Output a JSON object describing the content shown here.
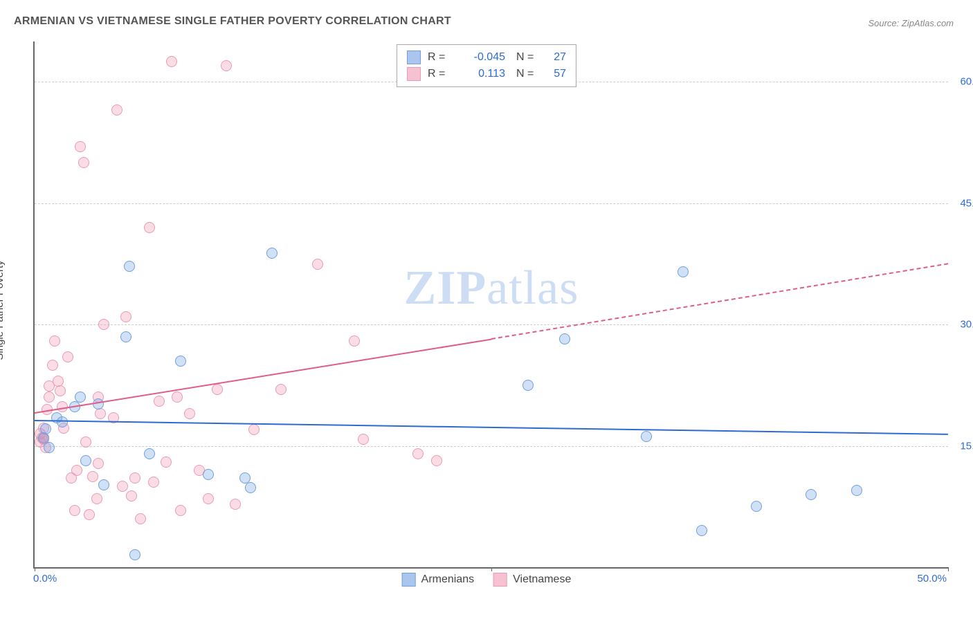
{
  "title": "ARMENIAN VS VIETNAMESE SINGLE FATHER POVERTY CORRELATION CHART",
  "source_label": "Source: ZipAtlas.com",
  "ylabel": "Single Father Poverty",
  "watermark_a": "ZIP",
  "watermark_b": "atlas",
  "chart": {
    "type": "scatter",
    "background_color": "#ffffff",
    "grid_color": "#cccccc",
    "axis_color": "#666666",
    "tick_color": "#2d6bd1",
    "xlim": [
      0,
      50
    ],
    "ylim": [
      0,
      65
    ],
    "yticks": [
      15,
      30,
      45,
      60
    ],
    "ytick_labels": [
      "15.0%",
      "30.0%",
      "45.0%",
      "60.0%"
    ],
    "xtick_marks": [
      0,
      25,
      50
    ],
    "xtick_min_label": "0.0%",
    "xtick_max_label": "50.0%",
    "marker_radius": 8,
    "marker_border_width": 1.5,
    "series": {
      "armenians": {
        "label": "Armenians",
        "fill": "rgba(120,165,225,0.35)",
        "stroke": "#6f9fe0",
        "swatch_fill": "#aac6ee",
        "swatch_border": "#6f9fe0",
        "trend_color": "#2d6bd1",
        "trend_width": 2,
        "r_label": "R =",
        "r_value": "-0.045",
        "n_label": "N =",
        "n_value": "27",
        "trend": {
          "x1": 0,
          "y1": 18.2,
          "x2": 50,
          "y2": 16.5
        },
        "points": [
          {
            "x": 0.5,
            "y": 16.0
          },
          {
            "x": 0.6,
            "y": 17.1
          },
          {
            "x": 0.8,
            "y": 14.8
          },
          {
            "x": 1.2,
            "y": 18.5
          },
          {
            "x": 1.5,
            "y": 18.0
          },
          {
            "x": 2.2,
            "y": 19.8
          },
          {
            "x": 2.5,
            "y": 21.0
          },
          {
            "x": 2.8,
            "y": 13.2
          },
          {
            "x": 3.5,
            "y": 20.2
          },
          {
            "x": 3.8,
            "y": 10.2
          },
          {
            "x": 5.0,
            "y": 28.5
          },
          {
            "x": 5.2,
            "y": 37.2
          },
          {
            "x": 5.5,
            "y": 1.5
          },
          {
            "x": 6.3,
            "y": 14.0
          },
          {
            "x": 8.0,
            "y": 25.5
          },
          {
            "x": 9.5,
            "y": 11.5
          },
          {
            "x": 11.5,
            "y": 11.0
          },
          {
            "x": 11.8,
            "y": 9.8
          },
          {
            "x": 13.0,
            "y": 38.8
          },
          {
            "x": 27.0,
            "y": 22.5
          },
          {
            "x": 29.0,
            "y": 28.2
          },
          {
            "x": 33.5,
            "y": 16.2
          },
          {
            "x": 35.5,
            "y": 36.5
          },
          {
            "x": 36.5,
            "y": 4.5
          },
          {
            "x": 39.5,
            "y": 7.5
          },
          {
            "x": 42.5,
            "y": 9.0
          },
          {
            "x": 45.0,
            "y": 9.5
          }
        ]
      },
      "vietnamese": {
        "label": "Vietnamese",
        "fill": "rgba(240,140,170,0.30)",
        "stroke": "#ea9ab5",
        "swatch_fill": "#f6c2d2",
        "swatch_border": "#ea9ab5",
        "trend_color": "#e05c8a",
        "trend_width": 2,
        "r_label": "R =",
        "r_value": "0.113",
        "n_label": "N =",
        "n_value": "57",
        "trend_solid": {
          "x1": 0,
          "y1": 19.2,
          "x2": 25,
          "y2": 28.3
        },
        "trend_dashed": {
          "x1": 25,
          "y1": 28.3,
          "x2": 50,
          "y2": 37.6
        },
        "points": [
          {
            "x": 0.3,
            "y": 15.5
          },
          {
            "x": 0.3,
            "y": 16.5
          },
          {
            "x": 0.4,
            "y": 16.0
          },
          {
            "x": 0.5,
            "y": 17.2
          },
          {
            "x": 0.5,
            "y": 15.8
          },
          {
            "x": 0.5,
            "y": 15.9
          },
          {
            "x": 0.6,
            "y": 14.8
          },
          {
            "x": 0.7,
            "y": 19.5
          },
          {
            "x": 0.8,
            "y": 21.0
          },
          {
            "x": 0.8,
            "y": 22.4
          },
          {
            "x": 1.0,
            "y": 25.0
          },
          {
            "x": 1.1,
            "y": 28.0
          },
          {
            "x": 1.3,
            "y": 23.0
          },
          {
            "x": 1.4,
            "y": 21.8
          },
          {
            "x": 1.5,
            "y": 19.8
          },
          {
            "x": 1.6,
            "y": 17.2
          },
          {
            "x": 1.8,
            "y": 26.0
          },
          {
            "x": 2.0,
            "y": 11.0
          },
          {
            "x": 2.2,
            "y": 7.0
          },
          {
            "x": 2.3,
            "y": 12.0
          },
          {
            "x": 2.5,
            "y": 52.0
          },
          {
            "x": 2.7,
            "y": 50.0
          },
          {
            "x": 2.8,
            "y": 15.5
          },
          {
            "x": 3.0,
            "y": 6.5
          },
          {
            "x": 3.2,
            "y": 11.2
          },
          {
            "x": 3.4,
            "y": 8.5
          },
          {
            "x": 3.5,
            "y": 12.8
          },
          {
            "x": 3.5,
            "y": 21.0
          },
          {
            "x": 3.6,
            "y": 19.0
          },
          {
            "x": 3.8,
            "y": 30.0
          },
          {
            "x": 4.3,
            "y": 18.5
          },
          {
            "x": 4.5,
            "y": 56.5
          },
          {
            "x": 4.8,
            "y": 10.0
          },
          {
            "x": 5.0,
            "y": 31.0
          },
          {
            "x": 5.3,
            "y": 8.8
          },
          {
            "x": 5.5,
            "y": 11.0
          },
          {
            "x": 5.8,
            "y": 6.0
          },
          {
            "x": 6.3,
            "y": 42.0
          },
          {
            "x": 6.5,
            "y": 10.5
          },
          {
            "x": 6.8,
            "y": 20.5
          },
          {
            "x": 7.2,
            "y": 13.0
          },
          {
            "x": 7.5,
            "y": 62.5
          },
          {
            "x": 7.8,
            "y": 21.0
          },
          {
            "x": 8.0,
            "y": 7.0
          },
          {
            "x": 8.5,
            "y": 19.0
          },
          {
            "x": 9.0,
            "y": 12.0
          },
          {
            "x": 9.5,
            "y": 8.5
          },
          {
            "x": 10.0,
            "y": 22.0
          },
          {
            "x": 10.5,
            "y": 62.0
          },
          {
            "x": 11.0,
            "y": 7.8
          },
          {
            "x": 12.0,
            "y": 17.0
          },
          {
            "x": 13.5,
            "y": 22.0
          },
          {
            "x": 15.5,
            "y": 37.5
          },
          {
            "x": 17.5,
            "y": 28.0
          },
          {
            "x": 18.0,
            "y": 15.8
          },
          {
            "x": 21.0,
            "y": 14.0
          },
          {
            "x": 22.0,
            "y": 13.2
          }
        ]
      }
    }
  }
}
